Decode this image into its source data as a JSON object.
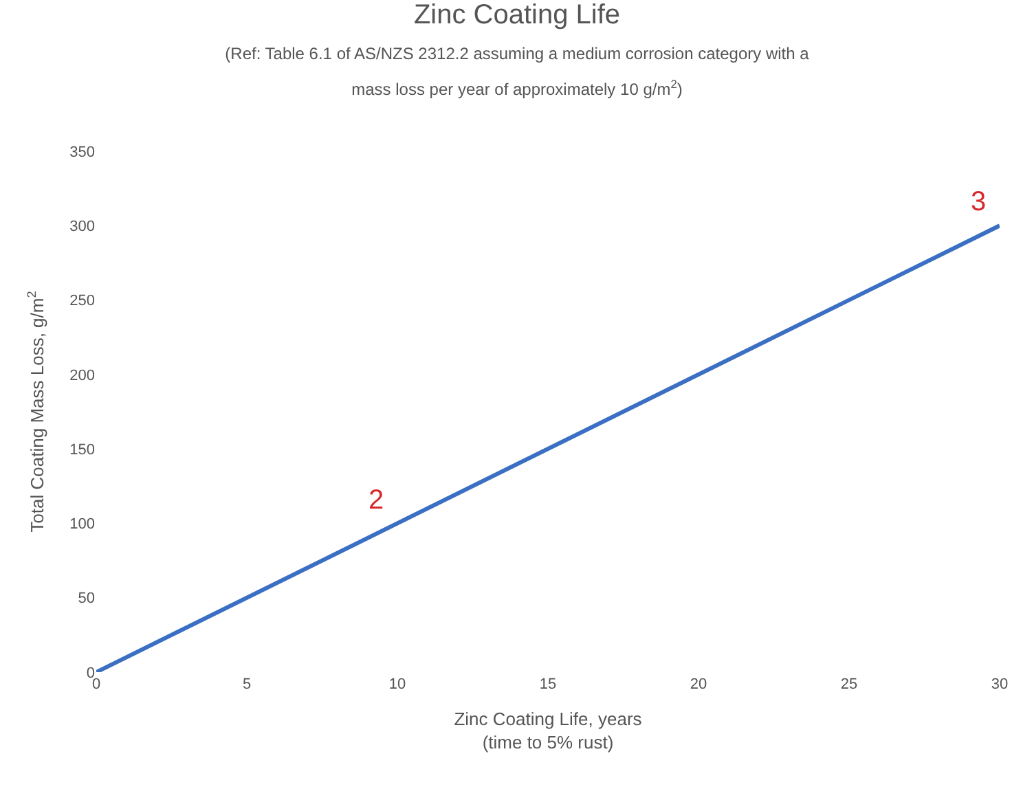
{
  "chart_data": {
    "type": "line",
    "title": "Zinc Coating Life",
    "subtitle": "(Ref: Table 6.1 of AS/NZS 2312.2 assuming a medium corrosion category with a\nmass loss per year of approximately 10 g/m$^{2}$)",
    "xlabel": "Zinc Coating Life, years\n(time to 5% rust)",
    "ylabel": "Total Coating Mass Loss, g/m$^{2}$",
    "x": [
      0,
      30
    ],
    "series": [
      {
        "color": "#3a6fc4",
        "values": [
          0,
          300
        ]
      }
    ],
    "xlim": [
      0,
      30
    ],
    "xticks": [
      0,
      5,
      10,
      15,
      20,
      25,
      30
    ],
    "ylim": [
      0,
      350
    ],
    "yticks": [
      0,
      50,
      100,
      150,
      200,
      250,
      300,
      350
    ],
    "annotations": [
      {
        "text": "2",
        "x": 10,
        "y": 100
      },
      {
        "text": "3",
        "x": 30,
        "y": 300
      }
    ],
    "marker": "none",
    "line_style": "solid"
  }
}
